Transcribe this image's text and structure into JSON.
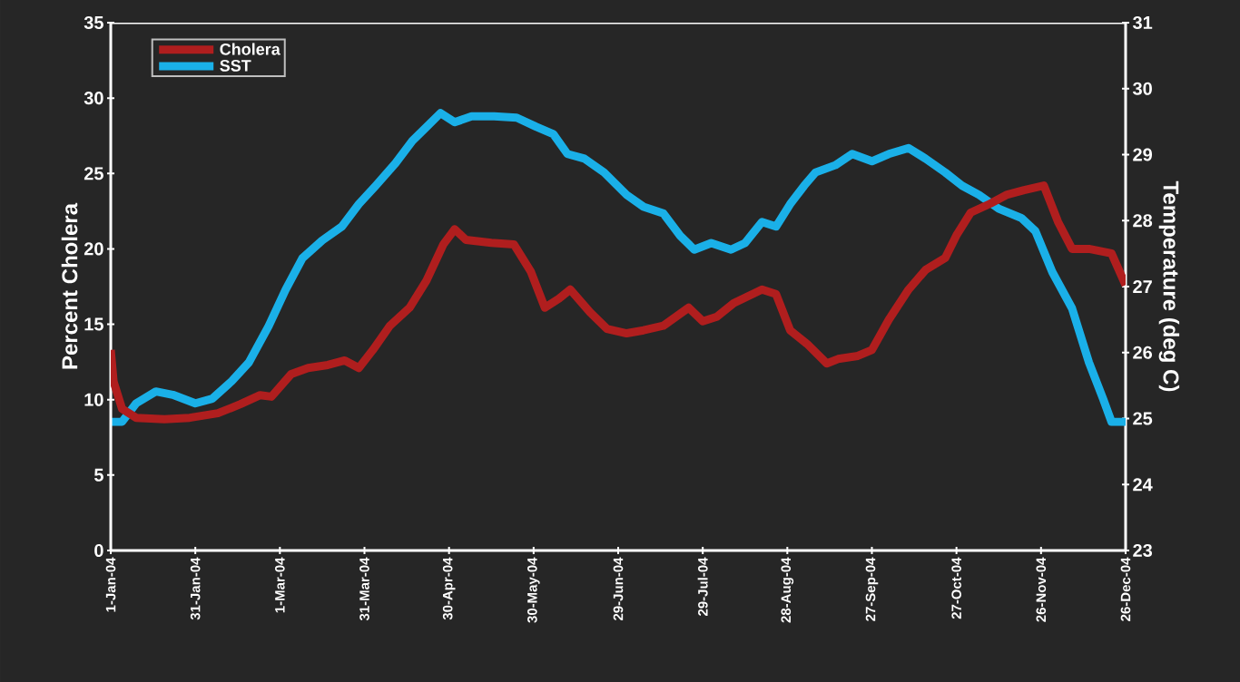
{
  "chart_data": {
    "type": "line",
    "ylabel": "Percent Cholera",
    "y2label": "Temperature (deg C)",
    "xlim": [
      "2004-01-01",
      "2004-12-26"
    ],
    "xticks": [
      {
        "value": "2004-01-01",
        "label": "1-Jan-04"
      },
      {
        "value": "2004-01-31",
        "label": "31-Jan-04"
      },
      {
        "value": "2004-03-01",
        "label": "1-Mar-04"
      },
      {
        "value": "2004-03-31",
        "label": "31-Mar-04"
      },
      {
        "value": "2004-04-30",
        "label": "30-Apr-04"
      },
      {
        "value": "2004-05-30",
        "label": "30-May-04"
      },
      {
        "value": "2004-06-29",
        "label": "29-Jun-04"
      },
      {
        "value": "2004-07-29",
        "label": "29-Jul-04"
      },
      {
        "value": "2004-08-28",
        "label": "28-Aug-04"
      },
      {
        "value": "2004-09-27",
        "label": "27-Sep-04"
      },
      {
        "value": "2004-10-27",
        "label": "27-Oct-04"
      },
      {
        "value": "2004-11-26",
        "label": "26-Nov-04"
      },
      {
        "value": "2004-12-26",
        "label": "26-Dec-04"
      }
    ],
    "ylim": [
      0,
      35
    ],
    "yticks": [
      0,
      5,
      10,
      15,
      20,
      25,
      30,
      35
    ],
    "y2lim": [
      23,
      31
    ],
    "y2ticks": [
      23,
      24,
      25,
      26,
      27,
      28,
      29,
      30,
      31
    ],
    "legend": "top left",
    "series": [
      {
        "name": "Cholera",
        "color": "#b01e1e",
        "x": [
          "2004-01-01",
          "2004-01-02",
          "2004-01-05",
          "2004-01-10",
          "2004-01-20",
          "2004-01-29",
          "2004-02-08",
          "2004-02-16",
          "2004-02-23",
          "2004-02-27",
          "2004-03-05",
          "2004-03-11",
          "2004-03-18",
          "2004-03-24",
          "2004-03-29",
          "2004-04-03",
          "2004-04-09",
          "2004-04-16",
          "2004-04-22",
          "2004-04-28",
          "2004-05-02",
          "2004-05-06",
          "2004-05-15",
          "2004-05-23",
          "2004-05-29",
          "2004-06-03",
          "2004-06-08",
          "2004-06-12",
          "2004-06-19",
          "2004-06-25",
          "2004-07-02",
          "2004-07-08",
          "2004-07-15",
          "2004-07-24",
          "2004-07-29",
          "2004-08-03",
          "2004-08-09",
          "2004-08-19",
          "2004-08-24",
          "2004-08-29",
          "2004-09-04",
          "2004-09-11",
          "2004-09-15",
          "2004-09-22",
          "2004-09-27",
          "2004-10-03",
          "2004-10-10",
          "2004-10-16",
          "2004-10-23",
          "2004-10-27",
          "2004-11-01",
          "2004-11-08",
          "2004-11-14",
          "2004-11-20",
          "2004-11-27",
          "2004-12-02",
          "2004-12-07",
          "2004-12-13",
          "2004-12-21",
          "2004-12-26"
        ],
        "values": [
          13.3,
          11.2,
          9.4,
          8.8,
          8.7,
          8.8,
          9.1,
          9.7,
          10.3,
          10.2,
          11.7,
          12.1,
          12.3,
          12.6,
          12.1,
          13.3,
          14.9,
          16.1,
          17.9,
          20.3,
          21.3,
          20.6,
          20.4,
          20.3,
          18.5,
          16.1,
          16.7,
          17.3,
          15.8,
          14.7,
          14.4,
          14.6,
          14.9,
          16.1,
          15.2,
          15.5,
          16.4,
          17.3,
          17,
          14.6,
          13.7,
          12.4,
          12.7,
          12.9,
          13.3,
          15.3,
          17.3,
          18.6,
          19.4,
          20.9,
          22.4,
          23,
          23.6,
          23.9,
          24.2,
          21.8,
          20,
          20,
          19.7,
          17.6
        ]
      },
      {
        "name": "SST",
        "color": "#1ab0e8",
        "axis": "y2",
        "x": [
          "2004-01-01",
          "2004-01-05",
          "2004-01-10",
          "2004-01-17",
          "2004-01-23",
          "2004-01-31",
          "2004-02-06",
          "2004-02-13",
          "2004-02-19",
          "2004-02-26",
          "2004-03-03",
          "2004-03-09",
          "2004-03-16",
          "2004-03-23",
          "2004-03-29",
          "2004-04-04",
          "2004-04-11",
          "2004-04-17",
          "2004-04-22",
          "2004-04-27",
          "2004-05-02",
          "2004-05-08",
          "2004-05-16",
          "2004-05-24",
          "2004-05-31",
          "2004-06-06",
          "2004-06-11",
          "2004-06-17",
          "2004-06-24",
          "2004-07-02",
          "2004-07-08",
          "2004-07-15",
          "2004-07-21",
          "2004-07-26",
          "2004-08-01",
          "2004-08-08",
          "2004-08-13",
          "2004-08-19",
          "2004-08-24",
          "2004-08-29",
          "2004-09-03",
          "2004-09-07",
          "2004-09-14",
          "2004-09-20",
          "2004-09-27",
          "2004-10-03",
          "2004-10-10",
          "2004-10-16",
          "2004-10-23",
          "2004-10-29",
          "2004-11-04",
          "2004-11-11",
          "2004-11-19",
          "2004-11-24",
          "2004-11-30",
          "2004-12-07",
          "2004-12-13",
          "2004-12-18",
          "2004-12-21",
          "2004-12-26"
        ],
        "values": [
          24.95,
          24.95,
          25.23,
          25.41,
          25.36,
          25.23,
          25.3,
          25.57,
          25.85,
          26.4,
          26.95,
          27.43,
          27.7,
          27.91,
          28.25,
          28.53,
          28.87,
          29.21,
          29.42,
          29.63,
          29.49,
          29.58,
          29.58,
          29.56,
          29.42,
          29.31,
          29.01,
          28.94,
          28.73,
          28.39,
          28.21,
          28.11,
          27.77,
          27.56,
          27.66,
          27.56,
          27.66,
          27.98,
          27.91,
          28.25,
          28.53,
          28.73,
          28.84,
          29.01,
          28.9,
          29.01,
          29.1,
          28.94,
          28.73,
          28.53,
          28.39,
          28.18,
          28.04,
          27.84,
          27.22,
          26.67,
          25.85,
          25.3,
          24.95,
          24.95
        ]
      }
    ]
  }
}
